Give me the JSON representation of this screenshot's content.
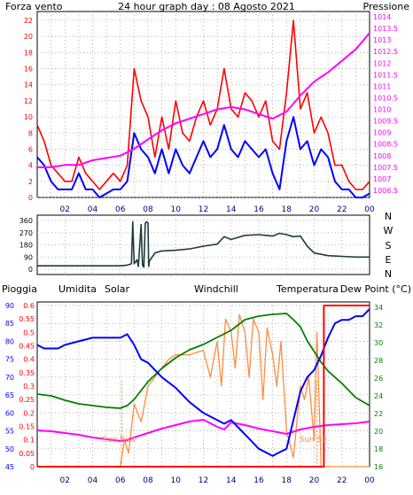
{
  "header": {
    "title": "24 hour graph day : 08 Agosto 2021",
    "left_label": "Forza vento",
    "right_label": "Pressione"
  },
  "colors": {
    "wind": "#ff0000",
    "wind_avg": "#0000ff",
    "pressure": "#ff00ff",
    "direction": "#1e3c3c",
    "humidity": "#0000ff",
    "solar": "#ff8c3c",
    "windchill": "#008000",
    "temperature": "#008000",
    "dewpoint": "#ff00ff",
    "rain": "#ff0000",
    "grid": "#a0a0a0",
    "title": "#0000aa",
    "axis_dark": "#000000"
  },
  "chart_data": [
    {
      "type": "line",
      "name": "wind-pressure",
      "x_ticks": [
        "02",
        "04",
        "06",
        "08",
        "10",
        "12",
        "14",
        "16",
        "18",
        "20",
        "22",
        "00"
      ],
      "x_tick_hours": [
        2,
        4,
        6,
        8,
        10,
        12,
        14,
        16,
        18,
        20,
        22,
        24
      ],
      "left_ticks": [
        0,
        2,
        4,
        6,
        8,
        10,
        12,
        14,
        16,
        18,
        20,
        22
      ],
      "left_ylim": [
        0,
        22
      ],
      "right_ticks": [
        "1006.5",
        "1007",
        "1007.5",
        "1008",
        "1008.5",
        "1009",
        "1009.5",
        "1010",
        "1010.5",
        "1011",
        "1011.5",
        "1012",
        "1012.5",
        "1013",
        "1013.5",
        "1014"
      ],
      "right_ylim": [
        1006.5,
        1014
      ],
      "series": [
        {
          "key": "gust",
          "hours": [
            0,
            0.5,
            1,
            1.5,
            2,
            2.5,
            3,
            3.5,
            4,
            4.5,
            5,
            5.5,
            6,
            6.5,
            7,
            7.5,
            8,
            8.5,
            9,
            9.5,
            10,
            10.5,
            11,
            11.5,
            12,
            12.5,
            13,
            13.5,
            14,
            14.5,
            15,
            15.5,
            16,
            16.5,
            17,
            17.5,
            18,
            18.5,
            19,
            19.5,
            20,
            20.5,
            21,
            21.5,
            22,
            22.5,
            23,
            23.5,
            24
          ],
          "values": [
            9,
            7,
            4,
            3,
            2,
            2,
            5,
            3,
            2,
            1,
            2,
            3,
            2,
            4,
            16,
            12,
            10,
            5,
            10,
            6,
            12,
            8,
            7,
            10,
            12,
            9,
            11,
            16,
            11,
            10,
            13,
            12,
            10,
            12,
            7,
            6,
            13,
            22,
            11,
            13,
            8,
            10,
            8,
            4,
            4,
            2,
            1,
            1,
            2
          ]
        },
        {
          "key": "avg",
          "hours": [
            0,
            0.5,
            1,
            1.5,
            2,
            2.5,
            3,
            3.5,
            4,
            4.5,
            5,
            5.5,
            6,
            6.5,
            7,
            7.5,
            8,
            8.5,
            9,
            9.5,
            10,
            10.5,
            11,
            11.5,
            12,
            12.5,
            13,
            13.5,
            14,
            14.5,
            15,
            15.5,
            16,
            16.5,
            17,
            17.5,
            18,
            18.5,
            19,
            19.5,
            20,
            20.5,
            21,
            21.5,
            22,
            22.5,
            23,
            23.5,
            24
          ],
          "values": [
            5,
            4,
            2,
            1,
            1,
            1,
            3,
            1,
            1,
            0,
            0.5,
            1,
            1,
            2,
            8,
            6,
            5,
            3,
            6,
            3,
            6,
            4,
            3,
            5,
            7,
            5,
            6,
            9,
            6,
            5,
            7,
            6,
            5,
            6,
            3,
            1,
            7,
            10,
            6,
            7,
            4,
            6,
            5,
            2,
            1,
            1,
            0,
            0,
            0.5
          ]
        },
        {
          "key": "pressure",
          "hours": [
            0,
            1,
            2,
            3,
            4,
            5,
            6,
            7,
            8,
            9,
            10,
            11,
            12,
            13,
            14,
            15,
            16,
            17,
            18,
            19,
            20,
            21,
            22,
            23,
            24
          ],
          "values": [
            1007.5,
            1007.5,
            1007.6,
            1007.6,
            1007.8,
            1007.9,
            1008.0,
            1008.3,
            1008.7,
            1009.1,
            1009.4,
            1009.6,
            1009.8,
            1010.0,
            1010.1,
            1010.0,
            1009.8,
            1009.6,
            1009.9,
            1010.6,
            1011.2,
            1011.6,
            1012.1,
            1012.6,
            1013.3
          ]
        }
      ]
    },
    {
      "type": "line",
      "name": "wind-direction",
      "left_ticks": [
        0,
        90,
        180,
        270,
        360
      ],
      "ylim": [
        0,
        360
      ],
      "compass": [
        "N",
        "W",
        "S",
        "E",
        "N"
      ],
      "hours": [
        0,
        1,
        2,
        3,
        4,
        5,
        6,
        6.5,
        6.8,
        6.9,
        7.0,
        7.2,
        7.3,
        7.5,
        7.6,
        7.7,
        7.8,
        7.9,
        8.0,
        8.05,
        8.1,
        8.3,
        8.5,
        9,
        10,
        11,
        12,
        13,
        13.5,
        14,
        15,
        16,
        16.5,
        17,
        17.5,
        18,
        18.5,
        19,
        19.5,
        20,
        20.5,
        21,
        22,
        23,
        24
      ],
      "values": [
        25,
        25,
        25,
        25,
        25,
        25,
        25,
        30,
        40,
        350,
        40,
        70,
        20,
        330,
        30,
        15,
        340,
        350,
        340,
        20,
        60,
        90,
        120,
        135,
        140,
        150,
        170,
        185,
        240,
        220,
        250,
        255,
        250,
        245,
        265,
        255,
        240,
        245,
        170,
        120,
        110,
        100,
        95,
        90,
        90
      ]
    },
    {
      "type": "line",
      "name": "humidity-temperature",
      "labels": {
        "rain": "Pioggia",
        "humidity": "Umidita",
        "solar": "Solar",
        "windchill": "Windchill",
        "temperature": "Temperatura",
        "dewpoint": "Dew Point (°C)"
      },
      "annotations": {
        "sunrise": "Sun Rise",
        "sunset": "Sun Se"
      },
      "sunrise_hour": 6.1,
      "sunset_hour": 20.2,
      "rain_ticks": [
        "0",
        "0.05",
        "0.1",
        "0.15",
        "0.2",
        "0.25",
        "0.3",
        "0.35",
        "0.4",
        "0.45",
        "0.5",
        "0.55",
        "0.6"
      ],
      "rain_ylim": [
        0,
        0.6
      ],
      "humidity_ticks": [
        45,
        50,
        55,
        60,
        65,
        70,
        75,
        80,
        85,
        90
      ],
      "humidity_ylim": [
        45,
        90
      ],
      "temp_ticks": [
        16,
        18,
        20,
        22,
        24,
        26,
        28,
        30,
        32,
        34
      ],
      "temp_ylim": [
        16,
        34
      ],
      "series": [
        {
          "key": "humidity",
          "hours": [
            0,
            0.5,
            1,
            1.5,
            2,
            3,
            4,
            5,
            6,
            6.5,
            7,
            7.5,
            8,
            9,
            10,
            11,
            12,
            12.5,
            13,
            13.5,
            14,
            14.5,
            15,
            15.5,
            16,
            16.5,
            17,
            17.5,
            18,
            18.5,
            19,
            19.5,
            20,
            20.5,
            21,
            21.5,
            22,
            22.5,
            23,
            23.5,
            24
          ],
          "values": [
            79,
            78,
            78,
            78,
            79,
            80,
            81,
            81,
            81,
            82,
            79,
            75,
            74,
            70,
            67,
            63,
            60,
            59,
            58,
            57,
            58,
            56,
            54,
            52,
            50,
            49,
            48,
            49,
            50,
            58,
            66,
            70,
            72,
            76,
            81,
            85,
            86,
            86,
            87,
            87,
            89
          ]
        },
        {
          "key": "solar",
          "hours": [
            0,
            5.5,
            6,
            6.3,
            6.6,
            7,
            7.5,
            8,
            8.5,
            9,
            9.5,
            10,
            11,
            12,
            12.5,
            13,
            13.3,
            13.6,
            14,
            14.3,
            14.6,
            15,
            15.3,
            15.6,
            16,
            16.3,
            16.6,
            17,
            17.3,
            17.6,
            18,
            18.5,
            19,
            19.3,
            19.6,
            20,
            20.2,
            20.5,
            24
          ],
          "values": [
            0,
            0,
            0,
            6,
            3,
            14,
            10,
            18,
            20,
            22,
            24,
            25,
            25,
            26,
            20,
            28,
            18,
            33,
            30,
            22,
            34,
            30,
            20,
            33,
            30,
            15,
            31,
            25,
            18,
            28,
            8,
            2,
            18,
            15,
            20,
            6,
            30,
            0,
            0
          ]
        },
        {
          "key": "temperature",
          "hours": [
            0,
            1,
            2,
            3,
            4,
            5,
            6,
            6.5,
            7,
            7.5,
            8,
            9,
            10,
            11,
            12,
            13,
            14,
            15,
            16,
            17,
            18,
            18.5,
            19,
            19.5,
            20,
            20.5,
            21,
            22,
            23,
            24
          ],
          "values": [
            24.2,
            24,
            23.5,
            23.1,
            22.9,
            22.7,
            22.6,
            22.9,
            23.6,
            24.6,
            25.6,
            27.1,
            28.3,
            29.2,
            29.8,
            30.6,
            31.4,
            32.6,
            33,
            33.2,
            33.3,
            32.6,
            31.8,
            30.2,
            29,
            27.8,
            26.8,
            25.4,
            23.8,
            22.9
          ]
        },
        {
          "key": "dewpoint",
          "hours": [
            0,
            1,
            2,
            3,
            4,
            5,
            6,
            6.5,
            7,
            8,
            9,
            10,
            11,
            12,
            12.5,
            13,
            13.5,
            14,
            15,
            16,
            17,
            18,
            19,
            20,
            21,
            22,
            23,
            24
          ],
          "values": [
            20.1,
            20,
            19.8,
            19.6,
            19.3,
            19.1,
            18.9,
            19,
            19.3,
            19.8,
            20.3,
            20.7,
            21.1,
            21.3,
            20.9,
            20.5,
            20.2,
            21,
            20.7,
            20.3,
            20,
            19.7,
            20.2,
            20.5,
            20.7,
            20.8,
            20.9,
            21.1
          ]
        },
        {
          "key": "rain",
          "hours": [
            0,
            20.7,
            20.7,
            24
          ],
          "values": [
            0,
            0,
            0.6,
            0.6
          ]
        }
      ]
    }
  ]
}
